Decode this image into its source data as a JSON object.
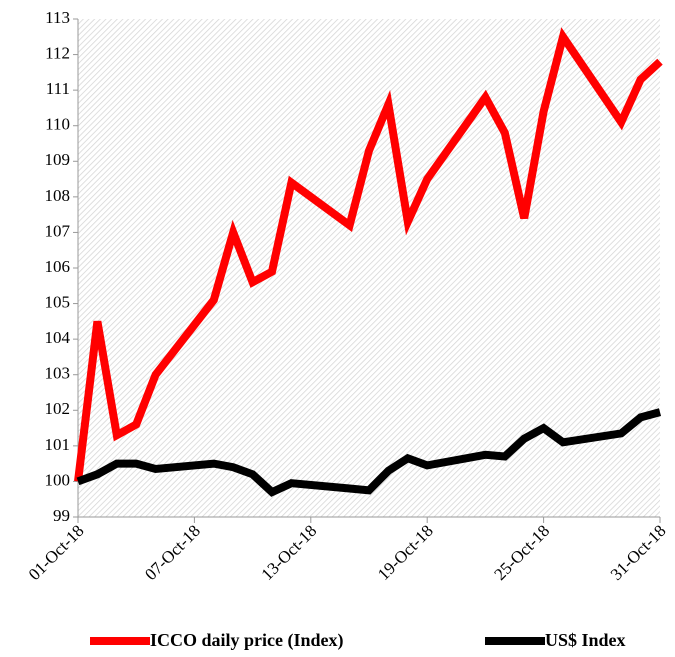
{
  "chart_data": {
    "type": "line",
    "x": [
      "2018-10-01",
      "2018-10-02",
      "2018-10-03",
      "2018-10-04",
      "2018-10-05",
      "2018-10-08",
      "2018-10-09",
      "2018-10-10",
      "2018-10-11",
      "2018-10-12",
      "2018-10-15",
      "2018-10-16",
      "2018-10-17",
      "2018-10-18",
      "2018-10-19",
      "2018-10-22",
      "2018-10-23",
      "2018-10-24",
      "2018-10-25",
      "2018-10-26",
      "2018-10-29",
      "2018-10-30",
      "2018-10-31"
    ],
    "series": [
      {
        "name": "ICCO daily price (Index)",
        "color": "#ff0000",
        "values": [
          100.0,
          104.5,
          101.3,
          101.6,
          103.0,
          105.1,
          107.0,
          105.6,
          105.9,
          108.4,
          107.2,
          109.3,
          110.6,
          107.3,
          108.5,
          110.8,
          109.8,
          107.4,
          110.4,
          112.5,
          110.1,
          111.3,
          111.8
        ]
      },
      {
        "name": "US$ Index",
        "color": "#000000",
        "values": [
          100.0,
          100.2,
          100.5,
          100.5,
          100.35,
          100.5,
          100.4,
          100.2,
          99.7,
          99.95,
          99.8,
          99.75,
          100.3,
          100.65,
          100.45,
          100.75,
          100.7,
          101.2,
          101.5,
          101.1,
          101.35,
          101.8,
          101.95
        ]
      }
    ],
    "xlim": [
      "2018-10-01",
      "2018-10-31"
    ],
    "xticks": [
      {
        "value": "2018-10-01",
        "label": "01-Oct-18"
      },
      {
        "value": "2018-10-07",
        "label": "07-Oct-18"
      },
      {
        "value": "2018-10-13",
        "label": "13-Oct-18"
      },
      {
        "value": "2018-10-19",
        "label": "19-Oct-18"
      },
      {
        "value": "2018-10-25",
        "label": "25-Oct-18"
      },
      {
        "value": "2018-10-31",
        "label": "31-Oct-18"
      }
    ],
    "ylim": [
      99,
      113
    ],
    "yticks": [
      99,
      100,
      101,
      102,
      103,
      104,
      105,
      106,
      107,
      108,
      109,
      110,
      111,
      112,
      113
    ],
    "legend": "bottom"
  }
}
